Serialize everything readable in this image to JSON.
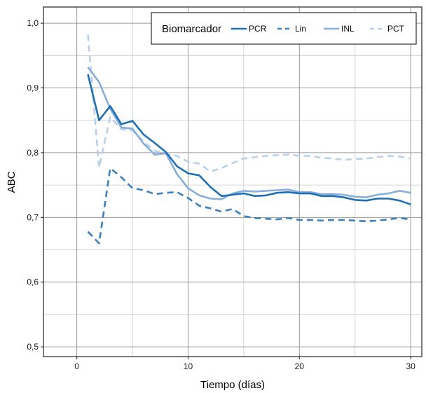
{
  "chart_data": {
    "type": "line",
    "xlabel": "Tiempo (días)",
    "ylabel": "ABC",
    "xlim": [
      -3,
      31
    ],
    "ylim": [
      0.485,
      1.025
    ],
    "xticks": [
      0,
      10,
      20,
      30
    ],
    "xtick_labels": [
      "0",
      "10",
      "20",
      "30"
    ],
    "yticks": [
      0.5,
      0.6,
      0.7,
      0.8,
      0.9,
      1.0
    ],
    "ytick_labels": [
      "0,5",
      "0,6",
      "0,7",
      "0,8",
      "0,9",
      "1,0"
    ],
    "x_minor_grid": [
      5,
      15,
      25
    ],
    "y_minor_grid": [
      0.55,
      0.65,
      0.75,
      0.85,
      0.95
    ],
    "grid": true,
    "legend": {
      "title": "Biomarcador",
      "placement": "top-right"
    },
    "x": [
      1,
      2,
      3,
      4,
      5,
      6,
      7,
      8,
      9,
      10,
      11,
      12,
      13,
      14,
      15,
      16,
      17,
      18,
      19,
      20,
      21,
      22,
      23,
      24,
      25,
      26,
      27,
      28,
      29,
      30
    ],
    "series": [
      {
        "name": "PCR",
        "color": "#1f6fb2",
        "dash": "solid",
        "values": [
          0.921,
          0.85,
          0.872,
          0.844,
          0.849,
          0.828,
          0.815,
          0.801,
          0.779,
          0.768,
          0.765,
          0.747,
          0.733,
          0.735,
          0.737,
          0.733,
          0.734,
          0.738,
          0.739,
          0.737,
          0.737,
          0.733,
          0.733,
          0.731,
          0.727,
          0.726,
          0.729,
          0.729,
          0.726,
          0.72
        ]
      },
      {
        "name": "Lin",
        "color": "#3a80c0",
        "dash": "dashed",
        "values": [
          0.678,
          0.66,
          0.776,
          0.762,
          0.745,
          0.742,
          0.736,
          0.738,
          0.739,
          0.73,
          0.718,
          0.714,
          0.709,
          0.713,
          0.702,
          0.699,
          0.698,
          0.697,
          0.699,
          0.696,
          0.696,
          0.695,
          0.696,
          0.696,
          0.695,
          0.694,
          0.695,
          0.697,
          0.699,
          0.697
        ]
      },
      {
        "name": "INL",
        "color": "#86aedb",
        "dash": "solid",
        "values": [
          0.932,
          0.909,
          0.868,
          0.839,
          0.837,
          0.814,
          0.797,
          0.799,
          0.767,
          0.745,
          0.734,
          0.729,
          0.728,
          0.737,
          0.741,
          0.74,
          0.741,
          0.742,
          0.743,
          0.739,
          0.739,
          0.736,
          0.736,
          0.735,
          0.732,
          0.731,
          0.735,
          0.737,
          0.741,
          0.738
        ]
      },
      {
        "name": "PCT",
        "color": "#b9d0ea",
        "dash": "dashed",
        "values": [
          0.982,
          0.777,
          0.855,
          0.836,
          0.834,
          0.817,
          0.803,
          0.798,
          0.795,
          0.786,
          0.783,
          0.771,
          0.776,
          0.784,
          0.791,
          0.793,
          0.795,
          0.796,
          0.797,
          0.795,
          0.795,
          0.792,
          0.791,
          0.789,
          0.79,
          0.791,
          0.793,
          0.795,
          0.794,
          0.791
        ]
      }
    ]
  }
}
